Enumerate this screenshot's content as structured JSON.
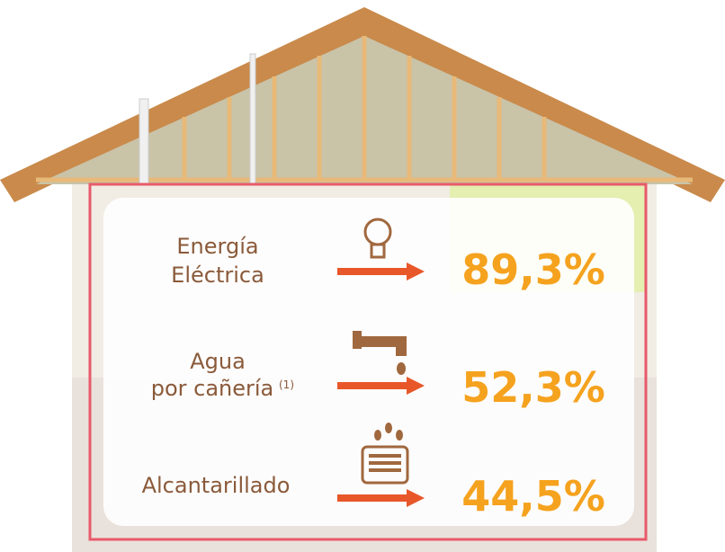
{
  "items": [
    {
      "label_lines": [
        "Energía",
        "Eléctrica"
      ],
      "value": "89,3%"
    },
    {
      "label_lines": [
        "Agua",
        "por cañería"
      ],
      "note": "(1)",
      "value": "52,3%"
    },
    {
      "label_lines": [
        "Alcantarillado"
      ],
      "value": "44,5%"
    }
  ]
}
